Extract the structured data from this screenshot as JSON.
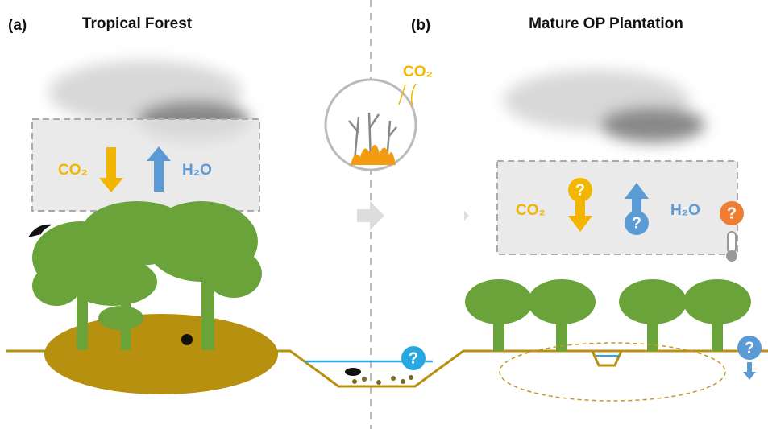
{
  "panels": [
    {
      "letter": "(a)",
      "title": "Tropical Forest"
    },
    {
      "letter": "(b)",
      "title": "Mature OP Plantation"
    }
  ],
  "forest_flux": {
    "co2": "CO₂",
    "h2o": "H₂O"
  },
  "fire": {
    "co2": "CO₂"
  },
  "plantation_flux": {
    "co2": "CO₂",
    "h2o": "H₂O",
    "co2_question": "?",
    "h2o_question": "?",
    "temperature_question": "?"
  },
  "water_questions": {
    "ditch": "?",
    "drainage": "?"
  }
}
